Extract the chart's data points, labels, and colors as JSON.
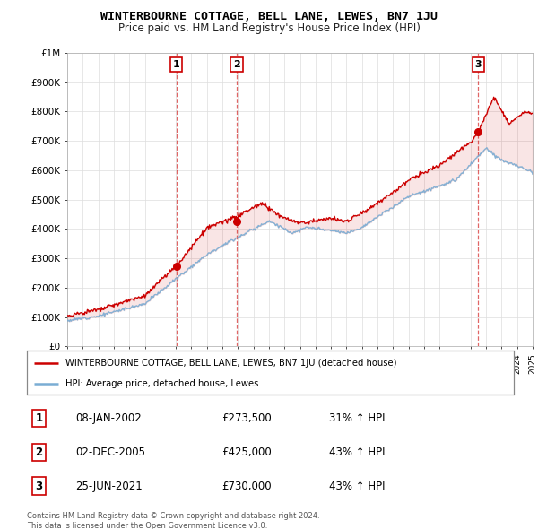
{
  "title": "WINTERBOURNE COTTAGE, BELL LANE, LEWES, BN7 1JU",
  "subtitle": "Price paid vs. HM Land Registry's House Price Index (HPI)",
  "yticks": [
    0,
    100000,
    200000,
    300000,
    400000,
    500000,
    600000,
    700000,
    800000,
    900000,
    1000000
  ],
  "ytick_labels": [
    "£0",
    "£100K",
    "£200K",
    "£300K",
    "£400K",
    "£500K",
    "£600K",
    "£700K",
    "£800K",
    "£900K",
    "£1M"
  ],
  "xmin": 1995,
  "xmax": 2025,
  "sale_dates": [
    2002.03,
    2005.92,
    2021.48
  ],
  "sale_prices": [
    273500,
    425000,
    730000
  ],
  "sale_labels": [
    "1",
    "2",
    "3"
  ],
  "red_line_color": "#cc0000",
  "blue_line_color": "#7aadd4",
  "dashed_line_color": "#cc0000",
  "legend_entries": [
    "WINTERBOURNE COTTAGE, BELL LANE, LEWES, BN7 1JU (detached house)",
    "HPI: Average price, detached house, Lewes"
  ],
  "table_data": [
    {
      "num": "1",
      "date": "08-JAN-2002",
      "price": "£273,500",
      "hpi": "31% ↑ HPI"
    },
    {
      "num": "2",
      "date": "02-DEC-2005",
      "price": "£425,000",
      "hpi": "43% ↑ HPI"
    },
    {
      "num": "3",
      "date": "25-JUN-2021",
      "price": "£730,000",
      "hpi": "43% ↑ HPI"
    }
  ],
  "footnote": "Contains HM Land Registry data © Crown copyright and database right 2024.\nThis data is licensed under the Open Government Licence v3.0.",
  "grid_color": "#dddddd"
}
